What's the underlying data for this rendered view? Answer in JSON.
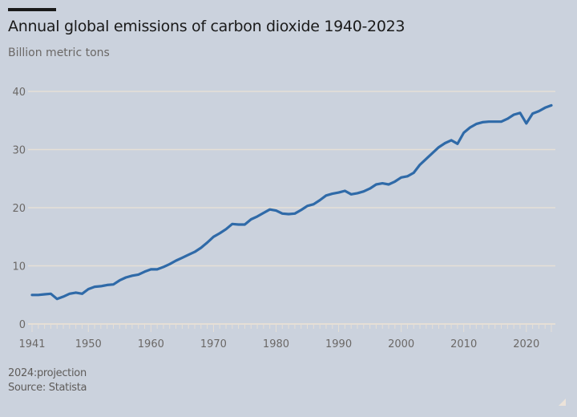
{
  "chart_data": {
    "type": "line",
    "title": "Annual global emissions of carbon dioxide 1940-2023",
    "subtitle": "Billion metric tons",
    "xlabel": "",
    "ylabel": "Billion metric tons",
    "xlim": [
      1941,
      2024
    ],
    "ylim": [
      0,
      40
    ],
    "grid": true,
    "yticks": [
      0,
      10,
      20,
      30,
      40
    ],
    "xticks": [
      1941,
      1950,
      1960,
      1970,
      1980,
      1990,
      2000,
      2010,
      2020
    ],
    "legend": "none",
    "series": [
      {
        "name": "CO2 emissions",
        "color": "#2f6aa8",
        "x": [
          1941,
          1942,
          1943,
          1944,
          1945,
          1946,
          1947,
          1948,
          1949,
          1950,
          1951,
          1952,
          1953,
          1954,
          1955,
          1956,
          1957,
          1958,
          1959,
          1960,
          1961,
          1962,
          1963,
          1964,
          1965,
          1966,
          1967,
          1968,
          1969,
          1970,
          1971,
          1972,
          1973,
          1974,
          1975,
          1976,
          1977,
          1978,
          1979,
          1980,
          1981,
          1982,
          1983,
          1984,
          1985,
          1986,
          1987,
          1988,
          1989,
          1990,
          1991,
          1992,
          1993,
          1994,
          1995,
          1996,
          1997,
          1998,
          1999,
          2000,
          2001,
          2002,
          2003,
          2004,
          2005,
          2006,
          2007,
          2008,
          2009,
          2010,
          2011,
          2012,
          2013,
          2014,
          2015,
          2016,
          2017,
          2018,
          2019,
          2020,
          2021,
          2022,
          2023,
          2024
        ],
        "values": [
          5.0,
          5.0,
          5.1,
          5.2,
          4.3,
          4.7,
          5.2,
          5.4,
          5.2,
          6.0,
          6.4,
          6.5,
          6.7,
          6.8,
          7.5,
          8.0,
          8.3,
          8.5,
          9.0,
          9.4,
          9.4,
          9.8,
          10.3,
          10.9,
          11.4,
          11.9,
          12.4,
          13.1,
          14.0,
          15.0,
          15.6,
          16.3,
          17.2,
          17.1,
          17.1,
          18.0,
          18.5,
          19.1,
          19.7,
          19.5,
          19.0,
          18.9,
          19.0,
          19.6,
          20.3,
          20.6,
          21.3,
          22.1,
          22.4,
          22.6,
          22.9,
          22.3,
          22.5,
          22.8,
          23.3,
          24.0,
          24.2,
          24.0,
          24.5,
          25.2,
          25.4,
          26.0,
          27.4,
          28.4,
          29.4,
          30.4,
          31.1,
          31.6,
          31.0,
          32.9,
          33.8,
          34.4,
          34.7,
          34.8,
          34.8,
          34.8,
          35.3,
          36.0,
          36.3,
          34.5,
          36.2,
          36.6,
          37.2,
          37.6
        ]
      }
    ],
    "annotations": [
      "2024:projection"
    ]
  },
  "footer": {
    "note": "2024:projection",
    "source": "Source: Statista"
  },
  "colors": {
    "background": "#cbd2dd",
    "line": "#2f6aa8",
    "grid": "#e6dfd6",
    "text_muted": "#6b6866"
  }
}
